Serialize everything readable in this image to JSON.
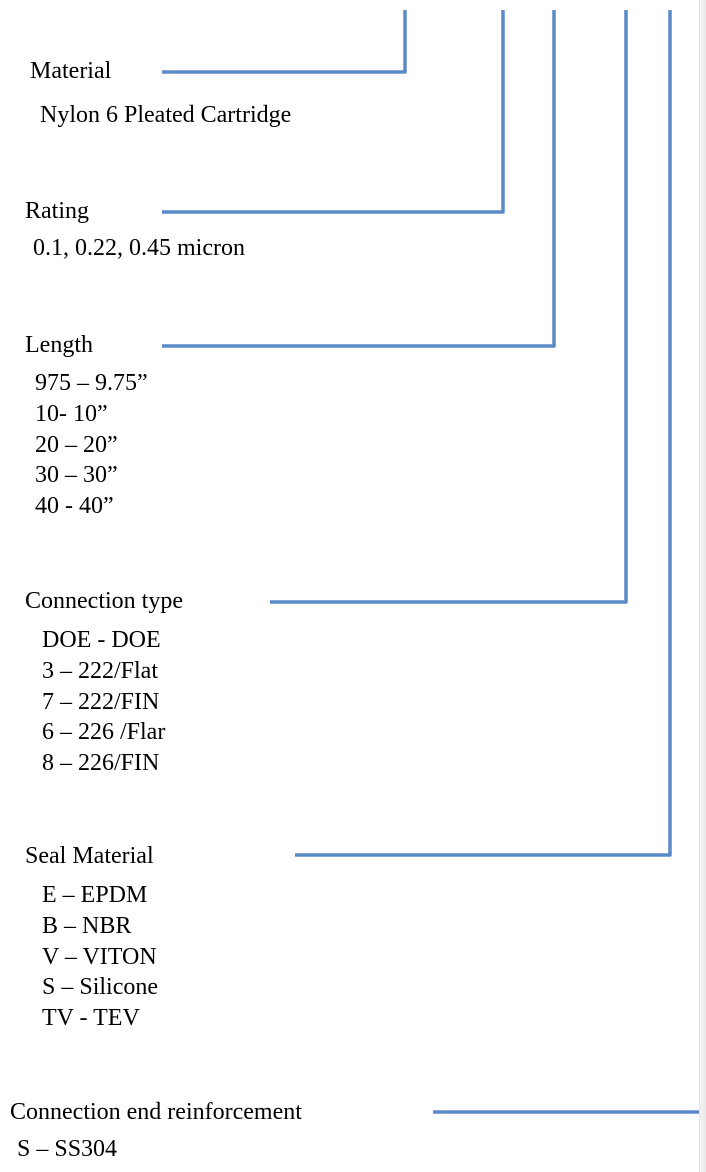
{
  "colors": {
    "connector": "#5b8ac8",
    "text": "#000000",
    "background": "#ffffff"
  },
  "groups": [
    {
      "id": "material",
      "label": "Material",
      "options": [
        "Nylon 6 Pleated Cartridge"
      ]
    },
    {
      "id": "rating",
      "label": "Rating",
      "options": [
        "0.1, 0.22, 0.45 micron"
      ]
    },
    {
      "id": "length",
      "label": "Length",
      "options": [
        "975 – 9.75”",
        "10- 10”",
        "20 – 20”",
        "30 – 30”",
        "40 - 40”"
      ]
    },
    {
      "id": "connection-type",
      "label": "Connection type",
      "options": [
        "DOE - DOE",
        "3 – 222/Flat",
        "7 – 222/FIN",
        "6 – 226 /Flar",
        "8 – 226/FIN"
      ]
    },
    {
      "id": "seal-material",
      "label": "Seal Material",
      "options": [
        "E – EPDM",
        "B – NBR",
        "V – VITON",
        "S – Silicone",
        "TV - TEV"
      ]
    },
    {
      "id": "connection-end-reinforcement",
      "label": "Connection end reinforcement",
      "options": [
        "S – SS304"
      ]
    }
  ]
}
